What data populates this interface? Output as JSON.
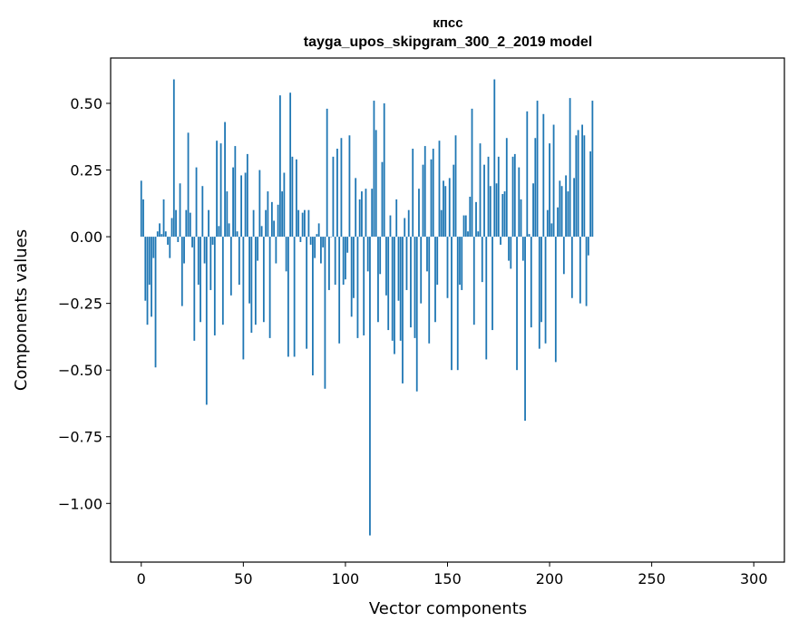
{
  "chart_data": {
    "type": "bar",
    "title": "кпсс",
    "subtitle": "tayga_upos_skipgram_300_2_2019 model",
    "xlabel": "Vector components",
    "ylabel": "Components values",
    "xlim": [
      -15,
      315
    ],
    "ylim": [
      -1.22,
      0.67
    ],
    "xticks": [
      0,
      50,
      100,
      150,
      200,
      250,
      300
    ],
    "xtick_labels": [
      "0",
      "50",
      "100",
      "150",
      "200",
      "250",
      "300"
    ],
    "yticks": [
      0.5,
      0.25,
      0.0,
      -0.25,
      -0.5,
      -0.75,
      -1.0
    ],
    "ytick_labels": [
      "0.50",
      "0.25",
      "0.00",
      "−0.25",
      "−0.50",
      "−0.75",
      "−1.00"
    ],
    "bar_color": "#1f77b4",
    "grid": false,
    "legend": "none",
    "values": [
      0.21,
      0.14,
      -0.24,
      -0.33,
      -0.18,
      -0.3,
      -0.08,
      -0.49,
      0.02,
      0.05,
      0.01,
      0.14,
      0.02,
      -0.03,
      -0.08,
      0.07,
      0.59,
      0.1,
      -0.02,
      0.2,
      -0.26,
      -0.1,
      0.1,
      0.39,
      0.09,
      -0.04,
      -0.39,
      0.26,
      -0.18,
      -0.32,
      0.19,
      -0.1,
      -0.63,
      0.1,
      -0.2,
      -0.03,
      -0.37,
      0.36,
      0.04,
      0.35,
      -0.33,
      0.43,
      0.17,
      0.05,
      -0.22,
      0.26,
      0.34,
      0.02,
      -0.18,
      0.23,
      -0.46,
      0.24,
      0.31,
      -0.25,
      -0.36,
      0.1,
      -0.33,
      -0.09,
      0.25,
      0.04,
      -0.32,
      0.1,
      0.17,
      -0.38,
      0.13,
      0.06,
      -0.1,
      0.12,
      0.53,
      0.17,
      0.24,
      -0.13,
      -0.45,
      0.54,
      0.3,
      -0.45,
      0.29,
      0.1,
      -0.02,
      0.09,
      0.1,
      -0.42,
      0.1,
      -0.03,
      -0.52,
      -0.08,
      0.01,
      0.05,
      -0.1,
      -0.04,
      -0.57,
      0.48,
      -0.2,
      0.0,
      0.3,
      -0.18,
      0.33,
      -0.4,
      0.37,
      -0.18,
      -0.16,
      -0.06,
      0.38,
      -0.3,
      -0.23,
      0.22,
      -0.38,
      0.14,
      0.17,
      -0.37,
      0.18,
      -0.13,
      -1.12,
      0.18,
      0.51,
      0.4,
      -0.32,
      -0.14,
      0.28,
      0.5,
      -0.22,
      -0.35,
      0.08,
      -0.39,
      -0.44,
      0.14,
      -0.24,
      -0.39,
      -0.55,
      0.07,
      -0.2,
      0.1,
      -0.34,
      0.33,
      -0.38,
      -0.58,
      0.18,
      -0.25,
      0.27,
      0.34,
      -0.13,
      -0.4,
      0.29,
      0.33,
      -0.32,
      -0.18,
      0.36,
      0.1,
      0.21,
      0.19,
      -0.23,
      0.22,
      -0.5,
      0.27,
      0.38,
      -0.5,
      -0.18,
      -0.2,
      0.08,
      0.08,
      0.02,
      0.15,
      0.48,
      -0.33,
      0.13,
      0.02,
      0.35,
      -0.17,
      0.27,
      -0.46,
      0.3,
      0.19,
      -0.35,
      0.59,
      0.2,
      0.3,
      -0.03,
      0.16,
      0.17,
      0.37,
      -0.09,
      -0.12,
      0.3,
      0.31,
      -0.5,
      0.26,
      0.14,
      -0.09,
      -0.69,
      0.47,
      0.01,
      -0.34,
      0.2,
      0.37,
      0.51,
      -0.42,
      -0.32,
      0.46,
      -0.4,
      0.1,
      0.35,
      0.05,
      0.42,
      -0.47,
      0.11,
      0.21,
      0.19,
      -0.14,
      0.23,
      0.17,
      0.52,
      -0.23,
      0.22,
      0.38,
      0.4,
      -0.25,
      0.42,
      0.38,
      -0.26,
      -0.07,
      0.32,
      0.51
    ]
  }
}
